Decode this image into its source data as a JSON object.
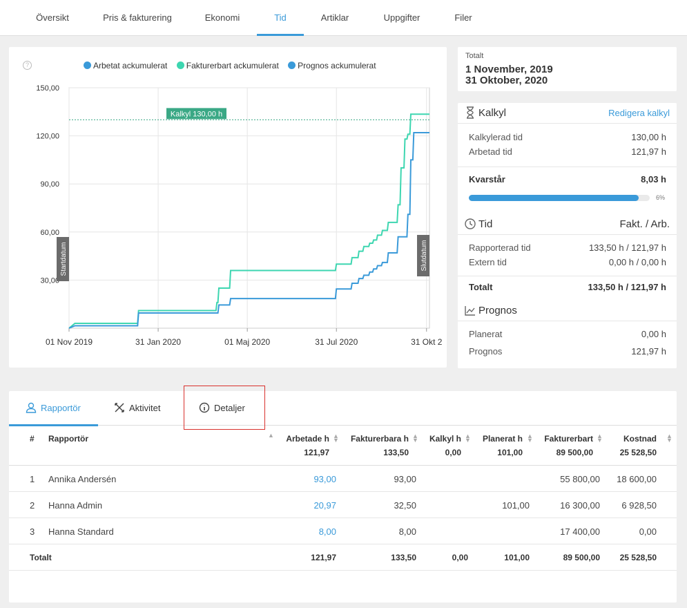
{
  "topnav": {
    "tabs": [
      "Översikt",
      "Pris & fakturering",
      "Ekonomi",
      "Tid",
      "Artiklar",
      "Uppgifter",
      "Filer"
    ],
    "active": "Tid"
  },
  "chart_data": {
    "type": "line",
    "legend": [
      "Arbetat ackumulerat",
      "Fakturerbart ackumulerat",
      "Prognos ackumulerat"
    ],
    "y_ticks": [
      "150,00",
      "120,00",
      "90,00",
      "60,00",
      "30,00"
    ],
    "ylim": [
      0,
      150
    ],
    "x_ticks": [
      "01 Nov 2019",
      "31 Jan 2020",
      "01 Maj 2020",
      "31 Jul 2020",
      "31 Okt 2"
    ],
    "x_tick_dates": [
      "2019-11-01",
      "2020-01-31",
      "2020-05-01",
      "2020-07-31",
      "2020-10-31"
    ],
    "xlim": [
      "2019-11-01",
      "2020-11-03"
    ],
    "grid": true,
    "legend_position": "top",
    "kalkyl_label": "Kalkyl 130,00 h",
    "kalkyl_value": 130,
    "start_label": "Startdatum",
    "end_label": "Slutdatum",
    "colors": {
      "arbetat": "#3a9ad9",
      "fakturerbart": "#3dd6b0",
      "prognos": "#3a9ad9",
      "kalkyl": "#3aa885"
    },
    "series": [
      {
        "name": "Arbetat ackumulerat",
        "x": [
          "2019-11-01",
          "2019-11-07",
          "2020-01-10",
          "2020-01-11",
          "2020-04-01",
          "2020-04-02",
          "2020-04-13",
          "2020-04-14",
          "2020-07-30",
          "2020-07-31",
          "2020-08-15",
          "2020-08-16",
          "2020-08-22",
          "2020-08-23",
          "2020-08-27",
          "2020-08-28",
          "2020-09-02",
          "2020-09-03",
          "2020-09-06",
          "2020-09-07",
          "2020-09-10",
          "2020-09-11",
          "2020-09-15",
          "2020-09-16",
          "2020-09-21",
          "2020-09-22",
          "2020-10-01",
          "2020-10-02",
          "2020-10-11",
          "2020-10-12",
          "2020-10-14",
          "2020-10-15",
          "2020-10-17",
          "2020-10-18",
          "2020-11-03"
        ],
        "y": [
          0,
          1.5,
          1.5,
          9.5,
          9.5,
          14.5,
          14.5,
          18.5,
          18.5,
          24.5,
          24.5,
          28,
          28,
          31,
          31,
          33,
          33,
          35,
          35,
          37,
          37,
          39,
          39,
          41,
          41,
          47,
          47,
          57,
          57,
          71,
          71,
          105,
          105,
          122,
          122
        ]
      },
      {
        "name": "Fakturerbart ackumulerat",
        "x": [
          "2019-11-01",
          "2019-11-07",
          "2020-01-10",
          "2020-01-11",
          "2020-03-30",
          "2020-03-31",
          "2020-04-01",
          "2020-04-02",
          "2020-04-13",
          "2020-04-14",
          "2020-07-30",
          "2020-07-31",
          "2020-08-15",
          "2020-08-16",
          "2020-08-22",
          "2020-08-23",
          "2020-08-27",
          "2020-08-28",
          "2020-09-02",
          "2020-09-03",
          "2020-09-06",
          "2020-09-07",
          "2020-09-10",
          "2020-09-11",
          "2020-09-15",
          "2020-09-16",
          "2020-09-21",
          "2020-09-22",
          "2020-10-01",
          "2020-10-02",
          "2020-10-04",
          "2020-10-05",
          "2020-10-08",
          "2020-10-09",
          "2020-10-11",
          "2020-10-12",
          "2020-10-14",
          "2020-10-15",
          "2020-11-03"
        ],
        "y": [
          0,
          3,
          3,
          11,
          11,
          16,
          16,
          25,
          25,
          36,
          36,
          40,
          40,
          44,
          44,
          48,
          48,
          51,
          51,
          53,
          53,
          55,
          55,
          58,
          58,
          61,
          61,
          66,
          66,
          77,
          77,
          100,
          100,
          118,
          118,
          121,
          121,
          133.5,
          133.5
        ]
      }
    ]
  },
  "total_card": {
    "label": "Totalt",
    "date_start": "1 November, 2019",
    "date_end": "31 Oktober, 2020"
  },
  "kalkyl": {
    "title": "Kalkyl",
    "edit_link": "Redigera kalkyl",
    "rows": [
      {
        "label": "Kalkylerad tid",
        "value": "130,00 h"
      },
      {
        "label": "Arbetad tid",
        "value": "121,97 h"
      }
    ],
    "remaining_label": "Kvarstår",
    "remaining_value": "8,03 h",
    "progress_fraction": 0.94,
    "progress_pct_label": "6%"
  },
  "tid": {
    "title": "Tid",
    "right_header": "Fakt. / Arb.",
    "rows": [
      {
        "label": "Rapporterad tid",
        "value": "133,50 h / 121,97 h"
      },
      {
        "label": "Extern tid",
        "value": "0,00 h / 0,00 h"
      }
    ],
    "total_label": "Totalt",
    "total_value": "133,50 h / 121,97 h"
  },
  "prognos": {
    "title": "Prognos",
    "rows": [
      {
        "label": "Planerat",
        "value": "0,00 h"
      },
      {
        "label": "Prognos",
        "value": "121,97 h"
      }
    ]
  },
  "bottom_tabs": [
    "Rapportör",
    "Aktivitet",
    "Detaljer"
  ],
  "table": {
    "headers": {
      "num": "#",
      "reporter": "Rapportör",
      "arbetade": "Arbetade h",
      "fakturerbara": "Fakturerbara h",
      "kalkyl": "Kalkyl h",
      "planerat": "Planerat h",
      "fakturerbart": "Fakturerbart",
      "kostnad": "Kostnad"
    },
    "header_totals": {
      "arbetade": "121,97",
      "fakturerbara": "133,50",
      "kalkyl": "0,00",
      "planerat": "101,00",
      "fakturerbart": "89 500,00",
      "kostnad": "25 528,50"
    },
    "rows": [
      {
        "num": "1",
        "name": "Annika Andersén",
        "arbetade": "93,00",
        "fakturerbara": "93,00",
        "kalkyl": "",
        "planerat": "",
        "fakturerbart": "55 800,00",
        "kostnad": "18 600,00"
      },
      {
        "num": "2",
        "name": "Hanna Admin",
        "arbetade": "20,97",
        "fakturerbara": "32,50",
        "kalkyl": "",
        "planerat": "101,00",
        "fakturerbart": "16 300,00",
        "kostnad": "6 928,50"
      },
      {
        "num": "3",
        "name": "Hanna Standard",
        "arbetade": "8,00",
        "fakturerbara": "8,00",
        "kalkyl": "",
        "planerat": "",
        "fakturerbart": "17 400,00",
        "kostnad": "0,00"
      }
    ],
    "total": {
      "label": "Totalt",
      "arbetade": "121,97",
      "fakturerbara": "133,50",
      "kalkyl": "0,00",
      "planerat": "101,00",
      "fakturerbart": "89 500,00",
      "kostnad": "25 528,50"
    }
  }
}
